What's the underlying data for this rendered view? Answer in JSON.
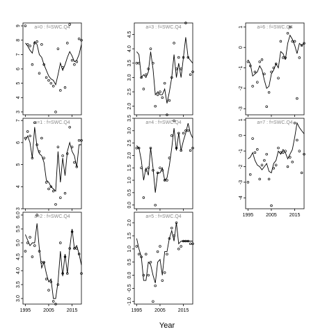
{
  "chart_data": {
    "type": "scatter",
    "xlabel": "Year",
    "colors": {
      "points": "#000000",
      "line": "#000000",
      "panel_title": "#888888"
    },
    "panels": [
      {
        "title": "a=0  :  f=SWC.Q4",
        "xlim": [
          1994,
          2019
        ],
        "ylim": [
          2.8,
          9.2
        ],
        "yticks": [
          3,
          4,
          5,
          6,
          7,
          8,
          9
        ],
        "x": [
          1995,
          1996,
          1997,
          1998,
          1999,
          2000,
          2001,
          2002,
          2003,
          2004,
          2005,
          2006,
          2007,
          2008,
          2009,
          2010,
          2011,
          2012,
          2013,
          2014,
          2015,
          2016,
          2017,
          2018,
          2019
        ],
        "y": [
          9.0,
          7.7,
          7.6,
          6.3,
          7.8,
          7.9,
          5.7,
          7.7,
          6.3,
          5.4,
          5.2,
          5.0,
          4.8,
          3.0,
          7.4,
          4.5,
          6.1,
          4.7,
          7.8,
          9.1,
          6.6,
          6.3,
          6.5,
          8.1,
          8.0
        ],
        "fit": [
          7.8,
          7.6,
          7.3,
          7.1,
          7.9,
          7.7,
          7.0,
          6.8,
          6.3,
          5.9,
          5.5,
          5.3,
          5.2,
          4.9,
          5.6,
          6.4,
          5.9,
          6.3,
          6.8,
          7.2,
          6.9,
          6.5,
          6.6,
          7.0,
          7.7
        ]
      },
      {
        "title": "a=3  :  f=SWC.Q4",
        "xlim": [
          1994,
          2019
        ],
        "ylim": [
          1.7,
          4.9
        ],
        "yticks": [
          2.0,
          2.5,
          3.0,
          3.5,
          4.0,
          4.5
        ],
        "x": [
          1995,
          1996,
          1997,
          1998,
          1999,
          2000,
          2001,
          2002,
          2003,
          2004,
          2005,
          2006,
          2007,
          2008,
          2009,
          2010,
          2011,
          2012,
          2013,
          2014,
          2015,
          2016,
          2017,
          2018,
          2019
        ],
        "y": [
          3.5,
          3.5,
          3.0,
          2.6,
          3.1,
          3.3,
          4.0,
          3.5,
          2.0,
          2.4,
          2.5,
          2.3,
          2.8,
          1.7,
          2.2,
          3.0,
          4.2,
          3.3,
          3.7,
          3.3,
          3.7,
          4.9,
          3.7,
          3.1,
          3.2
        ],
        "fit": [
          3.9,
          3.8,
          3.0,
          3.1,
          3.0,
          3.2,
          3.9,
          3.3,
          2.4,
          2.5,
          2.4,
          2.4,
          2.6,
          2.1,
          2.5,
          3.0,
          3.8,
          3.0,
          3.5,
          3.0,
          3.7,
          4.4,
          3.7,
          3.6,
          3.5
        ]
      },
      {
        "title": "a=6  :  f=SWC.Q4",
        "xlim": [
          1994,
          2019
        ],
        "ylim": [
          -3.3,
          1.2
        ],
        "yticks": [
          -3,
          -2,
          -1,
          0,
          1
        ],
        "x": [
          1995,
          1996,
          1997,
          1998,
          1999,
          2000,
          2001,
          2002,
          2003,
          2004,
          2005,
          2006,
          2007,
          2008,
          2009,
          2010,
          2011,
          2012,
          2013,
          2014,
          2015,
          2016,
          2017,
          2018,
          2019
        ],
        "y": [
          -0.7,
          -0.9,
          -1.9,
          -1.2,
          -1.7,
          -0.7,
          -0.6,
          -1.3,
          -2.9,
          -2.2,
          -1.2,
          -1.0,
          -0.8,
          -1.5,
          0.3,
          -0.5,
          -0.5,
          0.7,
          1.0,
          0.3,
          0.3,
          -2.5,
          -0.5,
          0.1,
          0.2
        ],
        "fit": [
          -0.6,
          -0.8,
          -1.4,
          -1.3,
          -1.2,
          -0.9,
          -1.1,
          -1.6,
          -2.0,
          -1.9,
          -1.3,
          -1.1,
          -0.8,
          -1.0,
          -0.2,
          -0.3,
          -0.6,
          0.2,
          0.6,
          0.4,
          0.1,
          -0.3,
          0.2,
          0.1,
          0.2
        ]
      },
      {
        "title": "a=1  :  f=SWC.Q4",
        "xlim": [
          1994,
          2019
        ],
        "ylim": [
          3.0,
          7.1
        ],
        "yticks": [
          3,
          4,
          5,
          6,
          7
        ],
        "x": [
          1995,
          1996,
          1997,
          1998,
          1999,
          2000,
          2001,
          2002,
          2003,
          2004,
          2005,
          2006,
          2007,
          2008,
          2009,
          2010,
          2011,
          2012,
          2013,
          2014,
          2015,
          2016,
          2017,
          2018,
          2019
        ],
        "y": [
          6.2,
          6.5,
          6.3,
          5.3,
          6.9,
          5.9,
          5.6,
          6.2,
          5.3,
          4.2,
          3.9,
          4.0,
          3.8,
          3.2,
          5.8,
          3.5,
          5.4,
          3.7,
          5.5,
          6.7,
          5.8,
          5.1,
          4.9,
          6.1,
          6.1
        ],
        "fit": [
          6.1,
          6.3,
          6.0,
          5.3,
          6.7,
          5.8,
          5.5,
          5.4,
          5.1,
          4.3,
          4.2,
          4.0,
          3.9,
          3.8,
          5.6,
          4.2,
          5.3,
          4.5,
          5.6,
          6.0,
          5.6,
          5.4,
          4.9,
          5.9,
          5.9
        ]
      },
      {
        "title": "a=4  :  f=SWC.Q4",
        "xlim": [
          1994,
          2019
        ],
        "ylim": [
          -0.15,
          3.5
        ],
        "yticks": [
          0.0,
          0.5,
          1.0,
          1.5,
          2.0,
          2.5,
          3.0,
          3.5
        ],
        "x": [
          1995,
          1996,
          1997,
          1998,
          1999,
          2000,
          2001,
          2002,
          2003,
          2004,
          2005,
          2006,
          2007,
          2008,
          2009,
          2010,
          2011,
          2012,
          2013,
          2014,
          2015,
          2016,
          2017,
          2018,
          2019
        ],
        "y": [
          2.3,
          2.3,
          1.5,
          0.3,
          1.4,
          1.5,
          2.3,
          1.4,
          0.0,
          1.3,
          1.5,
          1.4,
          1.0,
          1.0,
          1.9,
          2.8,
          3.4,
          2.3,
          2.9,
          2.2,
          2.9,
          3.0,
          3.0,
          2.2,
          2.3
        ],
        "fit": [
          2.4,
          2.3,
          1.8,
          1.0,
          1.5,
          1.2,
          2.3,
          1.5,
          0.5,
          1.3,
          1.3,
          1.5,
          1.0,
          1.1,
          1.6,
          2.3,
          3.1,
          2.2,
          2.9,
          2.2,
          2.6,
          2.9,
          3.3,
          2.9,
          2.7
        ]
      },
      {
        "title": "a=7  :  f=SWC.Q4",
        "xlim": [
          1994,
          2019
        ],
        "ylim": [
          -4.7,
          1.1
        ],
        "yticks": [
          -4,
          -3,
          -2,
          -1,
          0,
          1
        ],
        "x": [
          1995,
          1996,
          1997,
          1998,
          1999,
          2000,
          2001,
          2002,
          2003,
          2004,
          2005,
          2006,
          2007,
          2008,
          2009,
          2010,
          2011,
          2012,
          2013,
          2014,
          2015,
          2016,
          2017,
          2018,
          2019
        ],
        "y": [
          -3.0,
          -2.5,
          -0.2,
          -1.1,
          -0.9,
          -2.8,
          -1.9,
          -1.6,
          -1.2,
          -2.8,
          -4.5,
          -2.1,
          -1.9,
          -0.8,
          -1.1,
          -1.1,
          -1.0,
          -2.0,
          -1.4,
          -1.7,
          0.8,
          -0.3,
          -1.0,
          -2.4,
          -1.2
        ],
        "fit": [
          -1.5,
          -1.4,
          -1.1,
          -1.6,
          -1.9,
          -2.0,
          -2.2,
          -2.0,
          -1.8,
          -2.3,
          -2.4,
          -1.8,
          -1.6,
          -1.0,
          -1.2,
          -0.9,
          -1.1,
          -1.5,
          -1.2,
          -0.9,
          -0.1,
          0.8,
          0.5,
          0.3,
          0.1
        ]
      },
      {
        "title": "a=2  :  f=SWC.Q4",
        "xlim": [
          1994,
          2019
        ],
        "ylim": [
          2.8,
          6.1
        ],
        "yticks": [
          3.0,
          3.5,
          4.0,
          4.5,
          5.0,
          5.5,
          6.0
        ],
        "x": [
          1995,
          1996,
          1997,
          1998,
          1999,
          2000,
          2001,
          2002,
          2003,
          2004,
          2005,
          2006,
          2007,
          2008,
          2009,
          2010,
          2011,
          2012,
          2013,
          2014,
          2015,
          2016,
          2017,
          2018,
          2019
        ],
        "y": [
          4.7,
          5.0,
          5.2,
          4.5,
          4.9,
          6.0,
          4.7,
          4.3,
          4.3,
          3.7,
          3.3,
          3.6,
          2.9,
          2.8,
          3.5,
          5.0,
          3.9,
          4.5,
          3.9,
          4.8,
          5.4,
          4.8,
          4.8,
          4.6,
          3.9
        ],
        "fit": [
          5.3,
          5.1,
          4.9,
          5.0,
          5.0,
          5.7,
          4.8,
          4.1,
          4.3,
          3.9,
          3.6,
          3.7,
          3.0,
          3.0,
          3.6,
          4.7,
          3.8,
          4.6,
          3.9,
          4.8,
          5.5,
          4.8,
          4.9,
          4.6,
          4.2
        ]
      },
      {
        "title": "a=5  :  f=SWC.Q4",
        "xlim": [
          1994,
          2019
        ],
        "ylim": [
          -1.1,
          2.4
        ],
        "yticks": [
          -1.0,
          -0.5,
          0.0,
          0.5,
          1.0,
          1.5,
          2.0
        ],
        "x": [
          1995,
          1996,
          1997,
          1998,
          1999,
          2000,
          2001,
          2002,
          2003,
          2004,
          2005,
          2006,
          2007,
          2008,
          2009,
          2010,
          2011,
          2012,
          2013,
          2014,
          2015,
          2016,
          2017,
          2018,
          2019
        ],
        "y": [
          1.1,
          0.8,
          0.7,
          0.0,
          0.8,
          0.0,
          0.5,
          -1.0,
          -0.4,
          0.9,
          1.1,
          -0.2,
          0.1,
          0.8,
          1.4,
          1.8,
          1.5,
          2.0,
          1.0,
          1.1,
          1.3,
          1.3,
          1.3,
          1.2,
          1.2
        ],
        "fit": [
          1.4,
          1.0,
          0.7,
          -0.2,
          -0.2,
          0.5,
          0.4,
          0.0,
          -0.3,
          0.5,
          0.6,
          0.0,
          0.9,
          0.9,
          1.4,
          1.7,
          1.3,
          2.0,
          1.2,
          1.3,
          1.3,
          1.3,
          1.3,
          1.3,
          1.3
        ]
      }
    ],
    "xticks": [
      1995,
      2005,
      2015
    ]
  }
}
